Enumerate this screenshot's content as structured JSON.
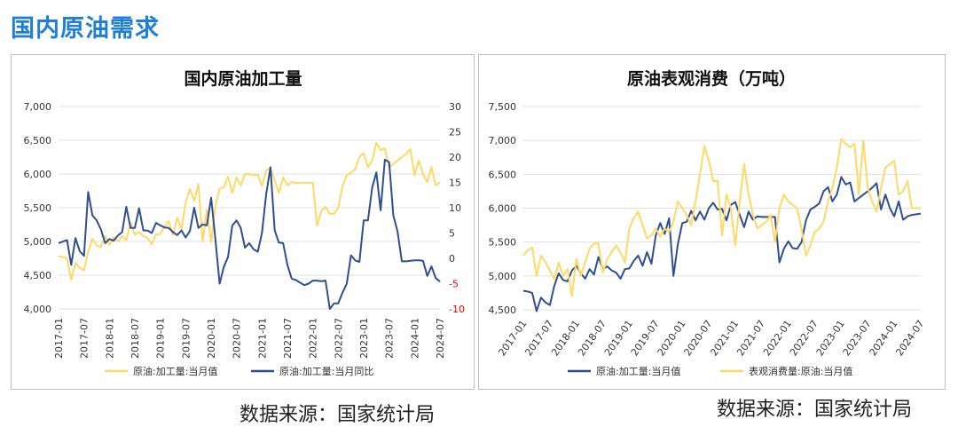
{
  "page_title": "国内原油需求",
  "sources": [
    "数据来源：国家统计局",
    "数据来源：国家统计局"
  ],
  "colors": {
    "yellow": "#ffd966",
    "blue": "#2f4f8f",
    "red_tick": "#ff0000",
    "title_blue": "#1f7fd6",
    "grid": "#e0e0e0"
  },
  "chart_data": [
    {
      "type": "line",
      "title": "国内原油加工量",
      "dates": [
        "2017-01",
        "2017-02",
        "2017-03",
        "2017-04",
        "2017-05",
        "2017-06",
        "2017-07",
        "2017-08",
        "2017-09",
        "2017-10",
        "2017-11",
        "2017-12",
        "2018-01",
        "2018-02",
        "2018-03",
        "2018-04",
        "2018-05",
        "2018-06",
        "2018-07",
        "2018-08",
        "2018-09",
        "2018-10",
        "2018-11",
        "2018-12",
        "2019-01",
        "2019-02",
        "2019-03",
        "2019-04",
        "2019-05",
        "2019-06",
        "2019-07",
        "2019-08",
        "2019-09",
        "2019-10",
        "2019-11",
        "2019-12",
        "2020-01",
        "2020-02",
        "2020-03",
        "2020-04",
        "2020-05",
        "2020-06",
        "2020-07",
        "2020-08",
        "2020-09",
        "2020-10",
        "2020-11",
        "2020-12",
        "2021-01",
        "2021-02",
        "2021-03",
        "2021-04",
        "2021-05",
        "2021-06",
        "2021-07",
        "2021-08",
        "2021-09",
        "2021-10",
        "2021-11",
        "2021-12",
        "2022-01",
        "2022-02",
        "2022-03",
        "2022-04",
        "2022-05",
        "2022-06",
        "2022-07",
        "2022-08",
        "2022-09",
        "2022-10",
        "2022-11",
        "2022-12",
        "2023-01",
        "2023-02",
        "2023-03",
        "2023-04",
        "2023-05",
        "2023-06",
        "2023-07",
        "2023-08",
        "2023-09",
        "2023-10",
        "2023-11",
        "2023-12",
        "2024-01",
        "2024-02",
        "2024-03",
        "2024-04",
        "2024-05",
        "2024-06",
        "2024-07"
      ],
      "x_tick_labels": [
        "2017-01",
        "2017-07",
        "2018-01",
        "2018-07",
        "2019-01",
        "2019-07",
        "2020-01",
        "2020-07",
        "2021-01",
        "2021-07",
        "2022-01",
        "2022-07",
        "2023-01",
        "2023-07",
        "2024-01",
        "2024-07"
      ],
      "y_left": {
        "range": [
          4000,
          7000
        ],
        "ticks": [
          "4,000",
          "4,500",
          "5,000",
          "5,500",
          "6,000",
          "6,500",
          "7,000"
        ]
      },
      "y_right": {
        "range": [
          -10,
          30
        ],
        "ticks": [
          "-10",
          "-5",
          "0",
          "5",
          "10",
          "15",
          "20",
          "25",
          "30"
        ]
      },
      "series": [
        {
          "name": "原油:加工量:当月值",
          "axis": "left",
          "color": "#ffd966",
          "values": [
            4780,
            4770,
            4750,
            4430,
            4680,
            4610,
            4570,
            4850,
            5040,
            4940,
            4920,
            5080,
            4950,
            5060,
            5000,
            5080,
            5020,
            5280,
            5100,
            5140,
            5080,
            5050,
            4960,
            5100,
            5110,
            5220,
            5300,
            5100,
            5350,
            5180,
            5580,
            5780,
            5600,
            5850,
            5000,
            5470,
            4990,
            5530,
            5780,
            5800,
            5960,
            5720,
            5950,
            5830,
            6000,
            6000,
            5980,
            5990,
            5820,
            6050,
            6090,
            5900,
            5720,
            5950,
            5830,
            5880,
            5870,
            5870,
            5870,
            5870,
            5870,
            5230,
            5450,
            5510,
            5410,
            5410,
            5500,
            5820,
            5980,
            6020,
            6070,
            6250,
            6310,
            6100,
            6200,
            6460,
            6350,
            6380,
            6100,
            6150,
            6200,
            6250,
            6300,
            6370,
            5980,
            6200,
            6000,
            5880,
            6100,
            5830,
            5880
          ]
        },
        {
          "name": "原油:加工量:当月同比",
          "axis": "right",
          "color": "#2f4f8f",
          "values": [
            3,
            3.3,
            3.6,
            -1.3,
            4,
            1.4,
            0.5,
            13.1,
            8.5,
            7.5,
            5.7,
            3,
            3.8,
            3.5,
            4.5,
            5.2,
            10.2,
            6,
            6,
            9.9,
            5.5,
            5.5,
            5,
            7,
            6.5,
            6.1,
            6,
            5.2,
            4.6,
            5.5,
            4.1,
            5.4,
            10,
            6,
            6.7,
            6.5,
            12,
            3.8,
            -5,
            -1.7,
            0.3,
            6.5,
            7.5,
            6,
            2.1,
            3,
            1.8,
            1.3,
            5,
            12.7,
            18,
            5.5,
            3.1,
            3,
            -1.3,
            -4,
            -4.3,
            -4.8,
            -5.3,
            -5,
            -4.4,
            -4.4,
            -4.5,
            -4.4,
            -10,
            -8.9,
            -8.9,
            -6.8,
            -5,
            0.6,
            -0.4,
            -0.7,
            7.5,
            7.5,
            14,
            17,
            9.5,
            19.5,
            19,
            8.5,
            5.3,
            -0.6,
            -0.6,
            -0.5,
            -0.4,
            -0.4,
            -0.5,
            -3.5,
            -1.6,
            -3.9,
            -4.6
          ]
        }
      ]
    },
    {
      "type": "line",
      "title": "原油表观消费（万吨）",
      "dates": [
        "2017-01",
        "2017-02",
        "2017-03",
        "2017-04",
        "2017-05",
        "2017-06",
        "2017-07",
        "2017-08",
        "2017-09",
        "2017-10",
        "2017-11",
        "2017-12",
        "2018-01",
        "2018-02",
        "2018-03",
        "2018-04",
        "2018-05",
        "2018-06",
        "2018-07",
        "2018-08",
        "2018-09",
        "2018-10",
        "2018-11",
        "2018-12",
        "2019-01",
        "2019-02",
        "2019-03",
        "2019-04",
        "2019-05",
        "2019-06",
        "2019-07",
        "2019-08",
        "2019-09",
        "2019-10",
        "2019-11",
        "2019-12",
        "2020-01",
        "2020-02",
        "2020-03",
        "2020-04",
        "2020-05",
        "2020-06",
        "2020-07",
        "2020-08",
        "2020-09",
        "2020-10",
        "2020-11",
        "2020-12",
        "2021-01",
        "2021-02",
        "2021-03",
        "2021-04",
        "2021-05",
        "2021-06",
        "2021-07",
        "2021-08",
        "2021-09",
        "2021-10",
        "2021-11",
        "2021-12",
        "2022-01",
        "2022-02",
        "2022-03",
        "2022-04",
        "2022-05",
        "2022-06",
        "2022-07",
        "2022-08",
        "2022-09",
        "2022-10",
        "2022-11",
        "2022-12",
        "2023-01",
        "2023-02",
        "2023-03",
        "2023-04",
        "2023-05",
        "2023-06",
        "2023-07",
        "2023-08",
        "2023-09",
        "2023-10",
        "2023-11",
        "2023-12",
        "2024-01",
        "2024-02",
        "2024-03",
        "2024-04",
        "2024-05",
        "2024-06",
        "2024-07"
      ],
      "x_tick_labels": [
        "2017-01",
        "2017-07",
        "2018-01",
        "2018-07",
        "2019-01",
        "2019-07",
        "2020-01",
        "2020-07",
        "2021-01",
        "2021-07",
        "2022-01",
        "2022-07",
        "2023-01",
        "2023-07",
        "2024-01",
        "2024-07"
      ],
      "y_left": {
        "range": [
          4500,
          7500
        ],
        "ticks": [
          "4,500",
          "5,000",
          "5,500",
          "6,000",
          "6,500",
          "7,000",
          "7,500"
        ]
      },
      "series": [
        {
          "name": "原油:加工量:当月值",
          "axis": "left",
          "color": "#2f4f8f",
          "values": [
            4780,
            4770,
            4750,
            4480,
            4680,
            4610,
            4570,
            4850,
            5040,
            4940,
            4920,
            5080,
            5150,
            5040,
            4960,
            5100,
            5020,
            5280,
            5100,
            5140,
            5080,
            5050,
            4960,
            5100,
            5110,
            5220,
            5300,
            5150,
            5350,
            5180,
            5600,
            5780,
            5620,
            5850,
            5000,
            5470,
            5780,
            5800,
            5960,
            5820,
            5950,
            5830,
            6000,
            6080,
            5980,
            5990,
            5820,
            6050,
            6090,
            5900,
            5720,
            5950,
            5830,
            5880,
            5870,
            5870,
            5870,
            5870,
            5200,
            5400,
            5510,
            5410,
            5400,
            5500,
            5820,
            5980,
            6020,
            6070,
            6250,
            6310,
            6100,
            6200,
            6460,
            6350,
            6380,
            6100,
            6150,
            6200,
            6250,
            6300,
            6370,
            5980,
            6200,
            6000,
            5880,
            6100,
            5830,
            5880,
            5900,
            5910,
            5920
          ]
        },
        {
          "name": "表观消费量:原油:当月值",
          "axis": "left",
          "color": "#ffd966",
          "values": [
            5300,
            5380,
            5420,
            5000,
            5300,
            5200,
            5080,
            4950,
            5200,
            5000,
            5100,
            4700,
            5250,
            5000,
            5200,
            5400,
            5480,
            5480,
            5050,
            5250,
            5350,
            5450,
            5350,
            5200,
            5700,
            5850,
            5950,
            5750,
            5550,
            5600,
            5700,
            5580,
            5700,
            5650,
            5800,
            6100,
            6000,
            5900,
            5750,
            6100,
            6500,
            6920,
            6700,
            6400,
            6400,
            5600,
            6200,
            6000,
            5450,
            6100,
            6650,
            6200,
            5900,
            5700,
            5750,
            5800,
            5900,
            5500,
            6000,
            6200,
            6100,
            6050,
            6000,
            5700,
            5300,
            5450,
            5650,
            5700,
            5800,
            6100,
            6300,
            6600,
            7020,
            6950,
            6900,
            6950,
            6200,
            7000,
            6300,
            6100,
            5950,
            6300,
            6600,
            6650,
            6700,
            6200,
            6250,
            6400,
            6000,
            6000,
            6000
          ]
        }
      ]
    }
  ]
}
